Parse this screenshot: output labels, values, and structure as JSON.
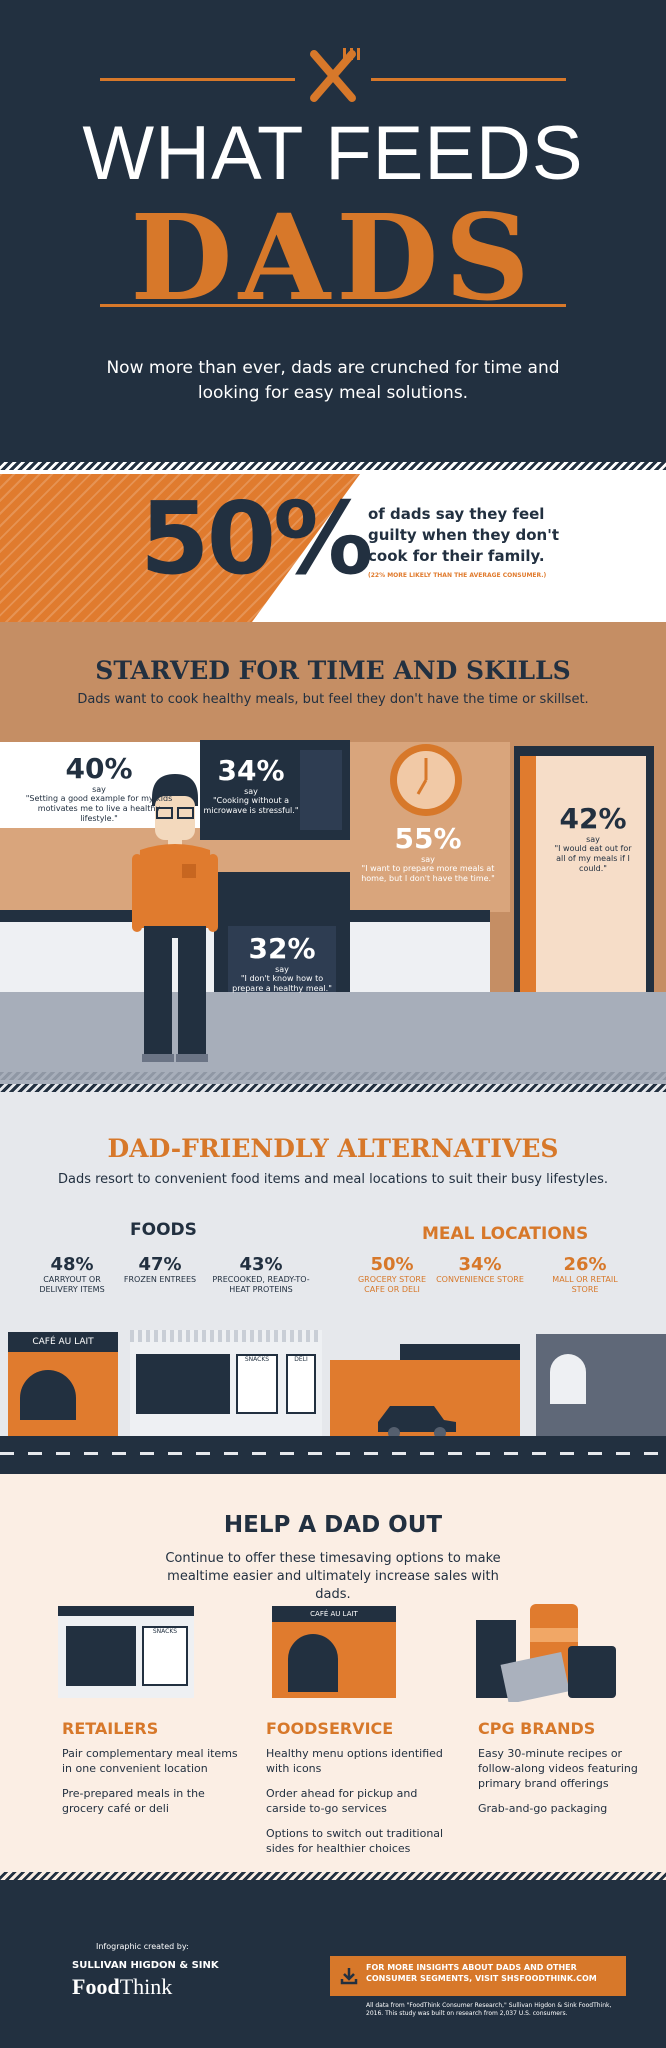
{
  "header": {
    "title_line1": "WHAT FEEDS",
    "title_line2": "DADS",
    "subtitle": "Now more than ever, dads are crunched for time and looking for easy meal solutions."
  },
  "guilt_stat": {
    "percent": "50%",
    "text": "of dads say they feel guilty when they don't cook for their family.",
    "note": "(22% MORE LIKELY THAN THE AVERAGE CONSUMER.)"
  },
  "starved": {
    "heading": "STARVED FOR TIME AND SKILLS",
    "subheading": "Dads want to cook healthy meals, but feel they don't have the time or skillset.",
    "stats": [
      {
        "percent": "40%",
        "say": "say",
        "quote": "\"Setting a good example for my kids motivates me to live a healthy lifestyle.\""
      },
      {
        "percent": "34%",
        "say": "say",
        "quote": "\"Cooking without a microwave is stressful.\""
      },
      {
        "percent": "55%",
        "say": "say",
        "quote": "\"I want to prepare more meals at home, but I don't have the time.\""
      },
      {
        "percent": "42%",
        "say": "say",
        "quote": "\"I would eat out for all of my meals if I could.\""
      },
      {
        "percent": "32%",
        "say": "say",
        "quote": "\"I don't know how to prepare a healthy meal.\""
      }
    ]
  },
  "alternatives": {
    "heading": "DAD-FRIENDLY ALTERNATIVES",
    "subheading": "Dads resort to convenient food items and meal locations to suit their busy lifestyles.",
    "foods_label": "FOODS",
    "locations_label": "MEAL LOCATIONS",
    "foods": [
      {
        "percent": "48%",
        "label": "CARRYOUT OR DELIVERY ITEMS"
      },
      {
        "percent": "47%",
        "label": "FROZEN ENTREES"
      },
      {
        "percent": "43%",
        "label": "PRECOOKED, READY-TO-HEAT PROTEINS"
      }
    ],
    "locations": [
      {
        "percent": "50%",
        "label": "GROCERY STORE CAFE OR DELI"
      },
      {
        "percent": "34%",
        "label": "CONVENIENCE STORE"
      },
      {
        "percent": "26%",
        "label": "MALL OR RETAIL STORE"
      }
    ],
    "signs": {
      "cafe": "CAFÉ AU LAIT",
      "snacks": "SNACKS",
      "deli": "DELI"
    }
  },
  "help": {
    "heading": "HELP A DAD OUT",
    "subheading": "Continue to offer these timesaving options to make mealtime easier and ultimately increase sales with dads.",
    "signs": {
      "snacks": "SNACKS",
      "cafe": "CAFÉ AU LAIT"
    },
    "columns": [
      {
        "title": "RETAILERS",
        "items": [
          "Pair complementary meal items in one convenient location",
          "Pre-prepared meals in the grocery café or deli"
        ]
      },
      {
        "title": "FOODSERVICE",
        "items": [
          "Healthy menu options identified with icons",
          "Order ahead for pickup and carside to-go services",
          "Options to switch out traditional sides for healthier choices"
        ]
      },
      {
        "title": "CPG BRANDS",
        "items": [
          "Easy 30-minute recipes or follow-along videos featuring primary brand offerings",
          "Grab-and-go packaging"
        ]
      }
    ]
  },
  "footer": {
    "created_by": "Infographic created by:",
    "agency": "SULLIVAN HIGDON & SINK",
    "brand_food": "Food",
    "brand_think": "Think",
    "cta": "FOR MORE INSIGHTS ABOUT DADS AND OTHER CONSUMER SEGMENTS, VISIT SHSFOODTHINK.COM",
    "source": "All data from \"FoodThink Consumer Research,\" Sullivan Higdon & Sink FoodThink, 2016. This study was built on research from 2,037 U.S. consumers."
  },
  "colors": {
    "navy": "#223040",
    "orange": "#d7782a",
    "tan": "#c58e64",
    "cream": "#fbeee4"
  }
}
